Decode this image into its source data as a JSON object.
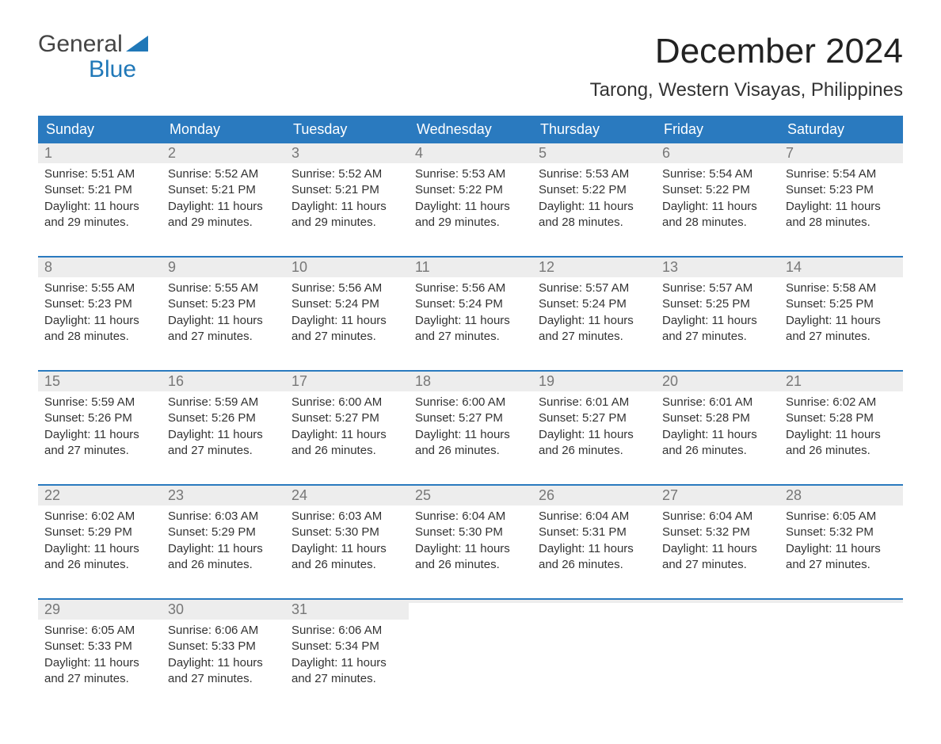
{
  "brand": {
    "word1": "General",
    "word2": "Blue",
    "flag_color": "#2078b8"
  },
  "title": "December 2024",
  "subtitle": "Tarong, Western Visayas, Philippines",
  "colors": {
    "header_bg": "#2a7abf",
    "header_text": "#ffffff",
    "daynum_bg": "#ededed",
    "daynum_text": "#777777",
    "body_text": "#333333",
    "background": "#ffffff",
    "week_border": "#2a7abf"
  },
  "typography": {
    "title_fontsize": 44,
    "subtitle_fontsize": 24,
    "weekday_fontsize": 18,
    "daynum_fontsize": 18,
    "body_fontsize": 15,
    "font_family": "Arial"
  },
  "layout": {
    "columns": 7,
    "rows": 5,
    "cell_min_height": 128
  },
  "weekdays": [
    "Sunday",
    "Monday",
    "Tuesday",
    "Wednesday",
    "Thursday",
    "Friday",
    "Saturday"
  ],
  "weeks": [
    [
      {
        "num": "1",
        "sunrise": "Sunrise: 5:51 AM",
        "sunset": "Sunset: 5:21 PM",
        "daylight1": "Daylight: 11 hours",
        "daylight2": "and 29 minutes."
      },
      {
        "num": "2",
        "sunrise": "Sunrise: 5:52 AM",
        "sunset": "Sunset: 5:21 PM",
        "daylight1": "Daylight: 11 hours",
        "daylight2": "and 29 minutes."
      },
      {
        "num": "3",
        "sunrise": "Sunrise: 5:52 AM",
        "sunset": "Sunset: 5:21 PM",
        "daylight1": "Daylight: 11 hours",
        "daylight2": "and 29 minutes."
      },
      {
        "num": "4",
        "sunrise": "Sunrise: 5:53 AM",
        "sunset": "Sunset: 5:22 PM",
        "daylight1": "Daylight: 11 hours",
        "daylight2": "and 29 minutes."
      },
      {
        "num": "5",
        "sunrise": "Sunrise: 5:53 AM",
        "sunset": "Sunset: 5:22 PM",
        "daylight1": "Daylight: 11 hours",
        "daylight2": "and 28 minutes."
      },
      {
        "num": "6",
        "sunrise": "Sunrise: 5:54 AM",
        "sunset": "Sunset: 5:22 PM",
        "daylight1": "Daylight: 11 hours",
        "daylight2": "and 28 minutes."
      },
      {
        "num": "7",
        "sunrise": "Sunrise: 5:54 AM",
        "sunset": "Sunset: 5:23 PM",
        "daylight1": "Daylight: 11 hours",
        "daylight2": "and 28 minutes."
      }
    ],
    [
      {
        "num": "8",
        "sunrise": "Sunrise: 5:55 AM",
        "sunset": "Sunset: 5:23 PM",
        "daylight1": "Daylight: 11 hours",
        "daylight2": "and 28 minutes."
      },
      {
        "num": "9",
        "sunrise": "Sunrise: 5:55 AM",
        "sunset": "Sunset: 5:23 PM",
        "daylight1": "Daylight: 11 hours",
        "daylight2": "and 27 minutes."
      },
      {
        "num": "10",
        "sunrise": "Sunrise: 5:56 AM",
        "sunset": "Sunset: 5:24 PM",
        "daylight1": "Daylight: 11 hours",
        "daylight2": "and 27 minutes."
      },
      {
        "num": "11",
        "sunrise": "Sunrise: 5:56 AM",
        "sunset": "Sunset: 5:24 PM",
        "daylight1": "Daylight: 11 hours",
        "daylight2": "and 27 minutes."
      },
      {
        "num": "12",
        "sunrise": "Sunrise: 5:57 AM",
        "sunset": "Sunset: 5:24 PM",
        "daylight1": "Daylight: 11 hours",
        "daylight2": "and 27 minutes."
      },
      {
        "num": "13",
        "sunrise": "Sunrise: 5:57 AM",
        "sunset": "Sunset: 5:25 PM",
        "daylight1": "Daylight: 11 hours",
        "daylight2": "and 27 minutes."
      },
      {
        "num": "14",
        "sunrise": "Sunrise: 5:58 AM",
        "sunset": "Sunset: 5:25 PM",
        "daylight1": "Daylight: 11 hours",
        "daylight2": "and 27 minutes."
      }
    ],
    [
      {
        "num": "15",
        "sunrise": "Sunrise: 5:59 AM",
        "sunset": "Sunset: 5:26 PM",
        "daylight1": "Daylight: 11 hours",
        "daylight2": "and 27 minutes."
      },
      {
        "num": "16",
        "sunrise": "Sunrise: 5:59 AM",
        "sunset": "Sunset: 5:26 PM",
        "daylight1": "Daylight: 11 hours",
        "daylight2": "and 27 minutes."
      },
      {
        "num": "17",
        "sunrise": "Sunrise: 6:00 AM",
        "sunset": "Sunset: 5:27 PM",
        "daylight1": "Daylight: 11 hours",
        "daylight2": "and 26 minutes."
      },
      {
        "num": "18",
        "sunrise": "Sunrise: 6:00 AM",
        "sunset": "Sunset: 5:27 PM",
        "daylight1": "Daylight: 11 hours",
        "daylight2": "and 26 minutes."
      },
      {
        "num": "19",
        "sunrise": "Sunrise: 6:01 AM",
        "sunset": "Sunset: 5:27 PM",
        "daylight1": "Daylight: 11 hours",
        "daylight2": "and 26 minutes."
      },
      {
        "num": "20",
        "sunrise": "Sunrise: 6:01 AM",
        "sunset": "Sunset: 5:28 PM",
        "daylight1": "Daylight: 11 hours",
        "daylight2": "and 26 minutes."
      },
      {
        "num": "21",
        "sunrise": "Sunrise: 6:02 AM",
        "sunset": "Sunset: 5:28 PM",
        "daylight1": "Daylight: 11 hours",
        "daylight2": "and 26 minutes."
      }
    ],
    [
      {
        "num": "22",
        "sunrise": "Sunrise: 6:02 AM",
        "sunset": "Sunset: 5:29 PM",
        "daylight1": "Daylight: 11 hours",
        "daylight2": "and 26 minutes."
      },
      {
        "num": "23",
        "sunrise": "Sunrise: 6:03 AM",
        "sunset": "Sunset: 5:29 PM",
        "daylight1": "Daylight: 11 hours",
        "daylight2": "and 26 minutes."
      },
      {
        "num": "24",
        "sunrise": "Sunrise: 6:03 AM",
        "sunset": "Sunset: 5:30 PM",
        "daylight1": "Daylight: 11 hours",
        "daylight2": "and 26 minutes."
      },
      {
        "num": "25",
        "sunrise": "Sunrise: 6:04 AM",
        "sunset": "Sunset: 5:30 PM",
        "daylight1": "Daylight: 11 hours",
        "daylight2": "and 26 minutes."
      },
      {
        "num": "26",
        "sunrise": "Sunrise: 6:04 AM",
        "sunset": "Sunset: 5:31 PM",
        "daylight1": "Daylight: 11 hours",
        "daylight2": "and 26 minutes."
      },
      {
        "num": "27",
        "sunrise": "Sunrise: 6:04 AM",
        "sunset": "Sunset: 5:32 PM",
        "daylight1": "Daylight: 11 hours",
        "daylight2": "and 27 minutes."
      },
      {
        "num": "28",
        "sunrise": "Sunrise: 6:05 AM",
        "sunset": "Sunset: 5:32 PM",
        "daylight1": "Daylight: 11 hours",
        "daylight2": "and 27 minutes."
      }
    ],
    [
      {
        "num": "29",
        "sunrise": "Sunrise: 6:05 AM",
        "sunset": "Sunset: 5:33 PM",
        "daylight1": "Daylight: 11 hours",
        "daylight2": "and 27 minutes."
      },
      {
        "num": "30",
        "sunrise": "Sunrise: 6:06 AM",
        "sunset": "Sunset: 5:33 PM",
        "daylight1": "Daylight: 11 hours",
        "daylight2": "and 27 minutes."
      },
      {
        "num": "31",
        "sunrise": "Sunrise: 6:06 AM",
        "sunset": "Sunset: 5:34 PM",
        "daylight1": "Daylight: 11 hours",
        "daylight2": "and 27 minutes."
      },
      {
        "num": "",
        "empty": true
      },
      {
        "num": "",
        "empty": true
      },
      {
        "num": "",
        "empty": true
      },
      {
        "num": "",
        "empty": true
      }
    ]
  ]
}
